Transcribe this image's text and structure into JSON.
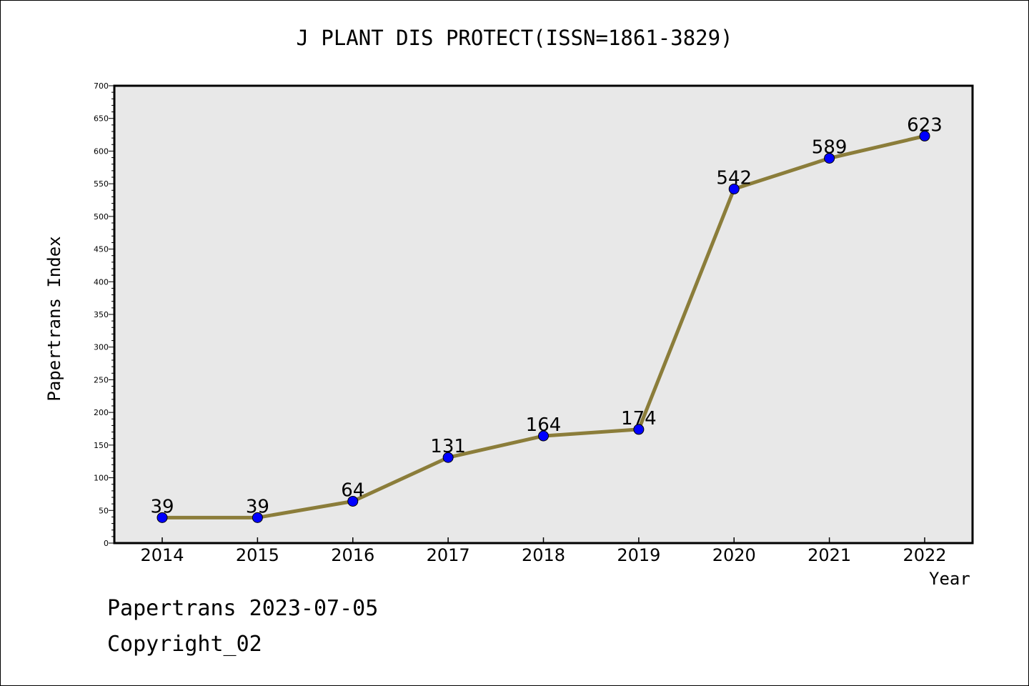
{
  "chart_data": {
    "type": "line",
    "title": "J PLANT DIS PROTECT(ISSN=1861-3829)",
    "xlabel": "Year",
    "ylabel": "Papertrans Index",
    "categories": [
      "2014",
      "2015",
      "2016",
      "2017",
      "2018",
      "2019",
      "2020",
      "2021",
      "2022"
    ],
    "values": [
      39,
      39,
      64,
      131,
      164,
      174,
      542,
      589,
      623
    ],
    "ylim": [
      0,
      700
    ],
    "yticks": [
      0,
      50,
      100,
      150,
      200,
      250,
      300,
      350,
      400,
      450,
      500,
      550,
      600,
      650,
      700
    ],
    "grid": false,
    "legend": "none",
    "colors": {
      "line": "#8B7D3A",
      "marker": "#0000FF",
      "plot_background": "#E8E8E8"
    }
  },
  "footer": {
    "date_line": "Papertrans 2023-07-05",
    "copyright": "Copyright_02"
  }
}
